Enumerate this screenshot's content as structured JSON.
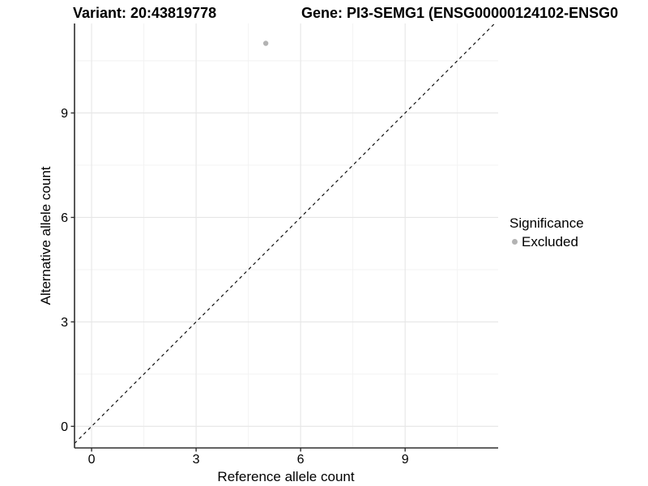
{
  "titles": {
    "variant": "Variant: 20:43819778",
    "gene": "Gene: PI3-SEMG1 (ENSG00000124102-ENSG0"
  },
  "chart_data": {
    "type": "scatter",
    "xlabel": "Reference allele count",
    "ylabel": "Alternative allele count",
    "xlim": [
      -0.49,
      11.67
    ],
    "ylim": [
      -0.62,
      11.57
    ],
    "x_major_ticks": [
      0,
      3,
      6,
      9
    ],
    "y_major_ticks": [
      0,
      3,
      6,
      9
    ],
    "x_minor_ticks": [
      1.5,
      4.5,
      7.5,
      10.5
    ],
    "y_minor_ticks": [
      1.5,
      4.5,
      7.5,
      10.5
    ],
    "grid": true,
    "reference_line": {
      "kind": "identity",
      "slope": 1,
      "intercept": 0,
      "style": "dashed",
      "color": "#000000"
    },
    "series": [
      {
        "name": "Excluded",
        "color": "#b3b3b3",
        "points": [
          {
            "x": 5,
            "y": 11
          }
        ]
      }
    ],
    "legend": {
      "title": "Significance",
      "position": "right",
      "entries": [
        {
          "label": "Excluded",
          "color": "#b3b3b3"
        }
      ]
    },
    "colors": {
      "grid_major": "#e6e6e6",
      "grid_minor": "#f2f2f2",
      "axis": "#2f2f2f",
      "tick_label": "#000000"
    }
  }
}
